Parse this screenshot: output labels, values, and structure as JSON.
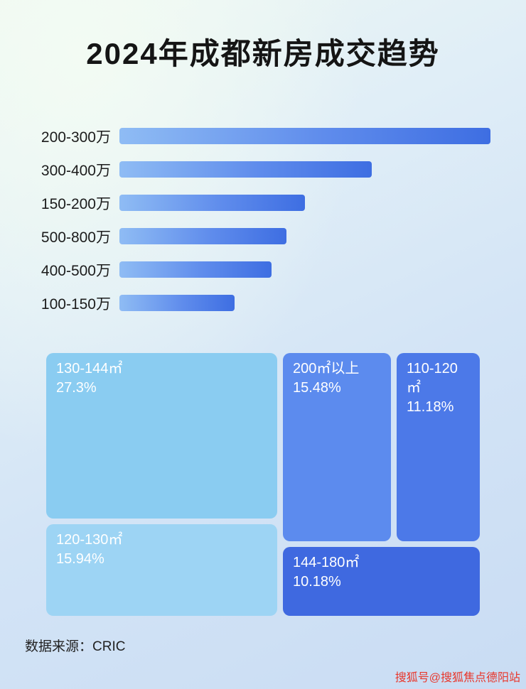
{
  "title": "2024年成都新房成交趋势",
  "footer": {
    "source": "数据来源：CRIC"
  },
  "watermark": "搜狐号@搜狐焦点德阳站",
  "colors": {
    "bar_gradient_start": "#8fbcf4",
    "bar_gradient_end": "#3e6ee2",
    "block_130_144": "#8accf1",
    "block_120_130": "#9dd4f4",
    "block_200_plus": "#5c8bee",
    "block_110_120": "#4c79e8",
    "block_144_180": "#3f69e0",
    "watermark_red": "#e8372c",
    "title_text": "#151515"
  },
  "chart_data": [
    {
      "type": "bar",
      "orientation": "horizontal",
      "title": "2024年成都新房成交趋势",
      "categories": [
        "200-300万",
        "300-400万",
        "150-200万",
        "500-800万",
        "400-500万",
        "100-150万"
      ],
      "values": [
        100,
        68,
        50,
        45,
        41,
        31
      ],
      "values_note": "bars carry no numeric labels; values are relative bar lengths as % of the longest bar",
      "xlabel": "",
      "ylabel": "",
      "grid": false,
      "legend": false
    },
    {
      "type": "treemap",
      "title": "",
      "items": [
        {
          "label": "130-144㎡",
          "value": 27.3,
          "value_label": "27.3%"
        },
        {
          "label": "120-130㎡",
          "value": 15.94,
          "value_label": "15.94%"
        },
        {
          "label": "200㎡以上",
          "value": 15.48,
          "value_label": "15.48%"
        },
        {
          "label": "110-120㎡",
          "value": 11.18,
          "value_label": "11.18%"
        },
        {
          "label": "144-180㎡",
          "value": 10.18,
          "value_label": "10.18%"
        }
      ]
    }
  ]
}
